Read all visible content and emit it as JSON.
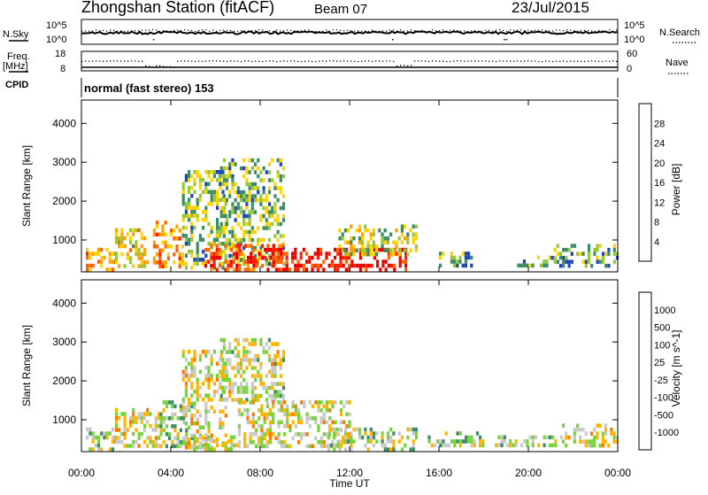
{
  "header": {
    "station_title": "Zhongshan Station (fitACF)",
    "beam": "Beam 07",
    "date": "23/Jul/2015"
  },
  "top_panels": {
    "nsky_label": "N.Sky",
    "nsky_ticks": [
      "10^5",
      "10^0"
    ],
    "nsearch_label": "N.Search",
    "nsearch_ticks": [
      "10^5",
      "10^0"
    ],
    "freq_label": "Freq.",
    "freq_unit": "[MHz]",
    "freq_ticks": [
      "18",
      "8"
    ],
    "nave_label": "Nave",
    "nave_ticks": [
      "60",
      "0"
    ],
    "cpid_label": "CPID",
    "cpid_value": "normal (fast stereo) 153"
  },
  "power_panel": {
    "ylabel": "Slant Range [km]",
    "colorbar_label": "Power [dB]",
    "colorbar_ticks": [
      "28",
      "24",
      "20",
      "16",
      "12",
      "8",
      "4"
    ],
    "colors": [
      "#1414f0",
      "#1e46b4",
      "#3c8c64",
      "#96c83c",
      "#ffd200",
      "#ffa000",
      "#ff6400",
      "#ff1e00",
      "#e60000"
    ]
  },
  "velocity_panel": {
    "ylabel": "Slant Range [km]",
    "colorbar_label": "Velocity [m s^-1]",
    "colorbar_ticks": [
      "1000",
      "500",
      "100",
      "25",
      "-25",
      "-100",
      "-500",
      "-1000"
    ],
    "colors": [
      "#1e3caa",
      "#2e6ea0",
      "#3c8c64",
      "#78d23c",
      "#c8c8c8",
      "#ffb400",
      "#ff7800",
      "#ff3c00",
      "#e60000"
    ]
  },
  "xaxis": {
    "label": "Time UT",
    "ticks": [
      "00:00",
      "04:00",
      "08:00",
      "12:00",
      "16:00",
      "20:00",
      "00:00"
    ]
  },
  "chart_data": [
    {
      "type": "heatmap",
      "name": "power",
      "x_range_hours": [
        0,
        24
      ],
      "ylim": [
        180,
        4600
      ],
      "yticks": [
        1000,
        2000,
        3000,
        4000
      ],
      "zlim": [
        0,
        32
      ],
      "ylabel": "Slant Range [km]",
      "zlabel": "Power [dB]",
      "regions": [
        {
          "t": [
            0.2,
            1.5
          ],
          "r": [
            250,
            800
          ],
          "level": 20
        },
        {
          "t": [
            1.5,
            3.0
          ],
          "r": [
            300,
            1300
          ],
          "level": 16
        },
        {
          "t": [
            3.2,
            4.5
          ],
          "r": [
            300,
            1500
          ],
          "level": 20
        },
        {
          "t": [
            4.5,
            6.5
          ],
          "r": [
            300,
            2800
          ],
          "level": 12
        },
        {
          "t": [
            6.2,
            9.0
          ],
          "r": [
            400,
            3100
          ],
          "level": 12
        },
        {
          "t": [
            5.5,
            9.0
          ],
          "r": [
            250,
            900
          ],
          "level": 26
        },
        {
          "t": [
            8.5,
            14.5
          ],
          "r": [
            250,
            800
          ],
          "level": 28
        },
        {
          "t": [
            11.5,
            15.0
          ],
          "r": [
            600,
            1400
          ],
          "level": 14
        },
        {
          "t": [
            16.0,
            17.5
          ],
          "r": [
            300,
            700
          ],
          "level": 10
        },
        {
          "t": [
            19.5,
            21.0
          ],
          "r": [
            300,
            600
          ],
          "level": 12
        },
        {
          "t": [
            21.0,
            24.0
          ],
          "r": [
            300,
            900
          ],
          "level": 10
        }
      ]
    },
    {
      "type": "heatmap",
      "name": "velocity",
      "x_range_hours": [
        0,
        24
      ],
      "ylim": [
        180,
        4600
      ],
      "yticks": [
        1000,
        2000,
        3000,
        4000
      ],
      "zlim": [
        -1200,
        1200
      ],
      "ylabel": "Slant Range [km]",
      "zlabel": "Velocity [m s^-1]",
      "regions": [
        {
          "t": [
            0.2,
            1.5
          ],
          "r": [
            250,
            800
          ],
          "level": -150
        },
        {
          "t": [
            1.5,
            3.5
          ],
          "r": [
            300,
            1300
          ],
          "level": 80
        },
        {
          "t": [
            3.5,
            5.0
          ],
          "r": [
            300,
            1500
          ],
          "level": -150
        },
        {
          "t": [
            4.5,
            6.5
          ],
          "r": [
            300,
            2800
          ],
          "level": 80
        },
        {
          "t": [
            6.2,
            9.0
          ],
          "r": [
            1500,
            3100
          ],
          "level": 0
        },
        {
          "t": [
            5.0,
            7.0
          ],
          "r": [
            250,
            600
          ],
          "level": 50
        },
        {
          "t": [
            7.0,
            12.0
          ],
          "r": [
            300,
            1500
          ],
          "level": 80
        },
        {
          "t": [
            11.0,
            15.0
          ],
          "r": [
            250,
            800
          ],
          "level": -150
        },
        {
          "t": [
            15.5,
            18.0
          ],
          "r": [
            300,
            700
          ],
          "level": -120
        },
        {
          "t": [
            18.5,
            21.5
          ],
          "r": [
            300,
            600
          ],
          "level": -130
        },
        {
          "t": [
            21.5,
            24.0
          ],
          "r": [
            300,
            900
          ],
          "level": 70
        }
      ]
    }
  ]
}
